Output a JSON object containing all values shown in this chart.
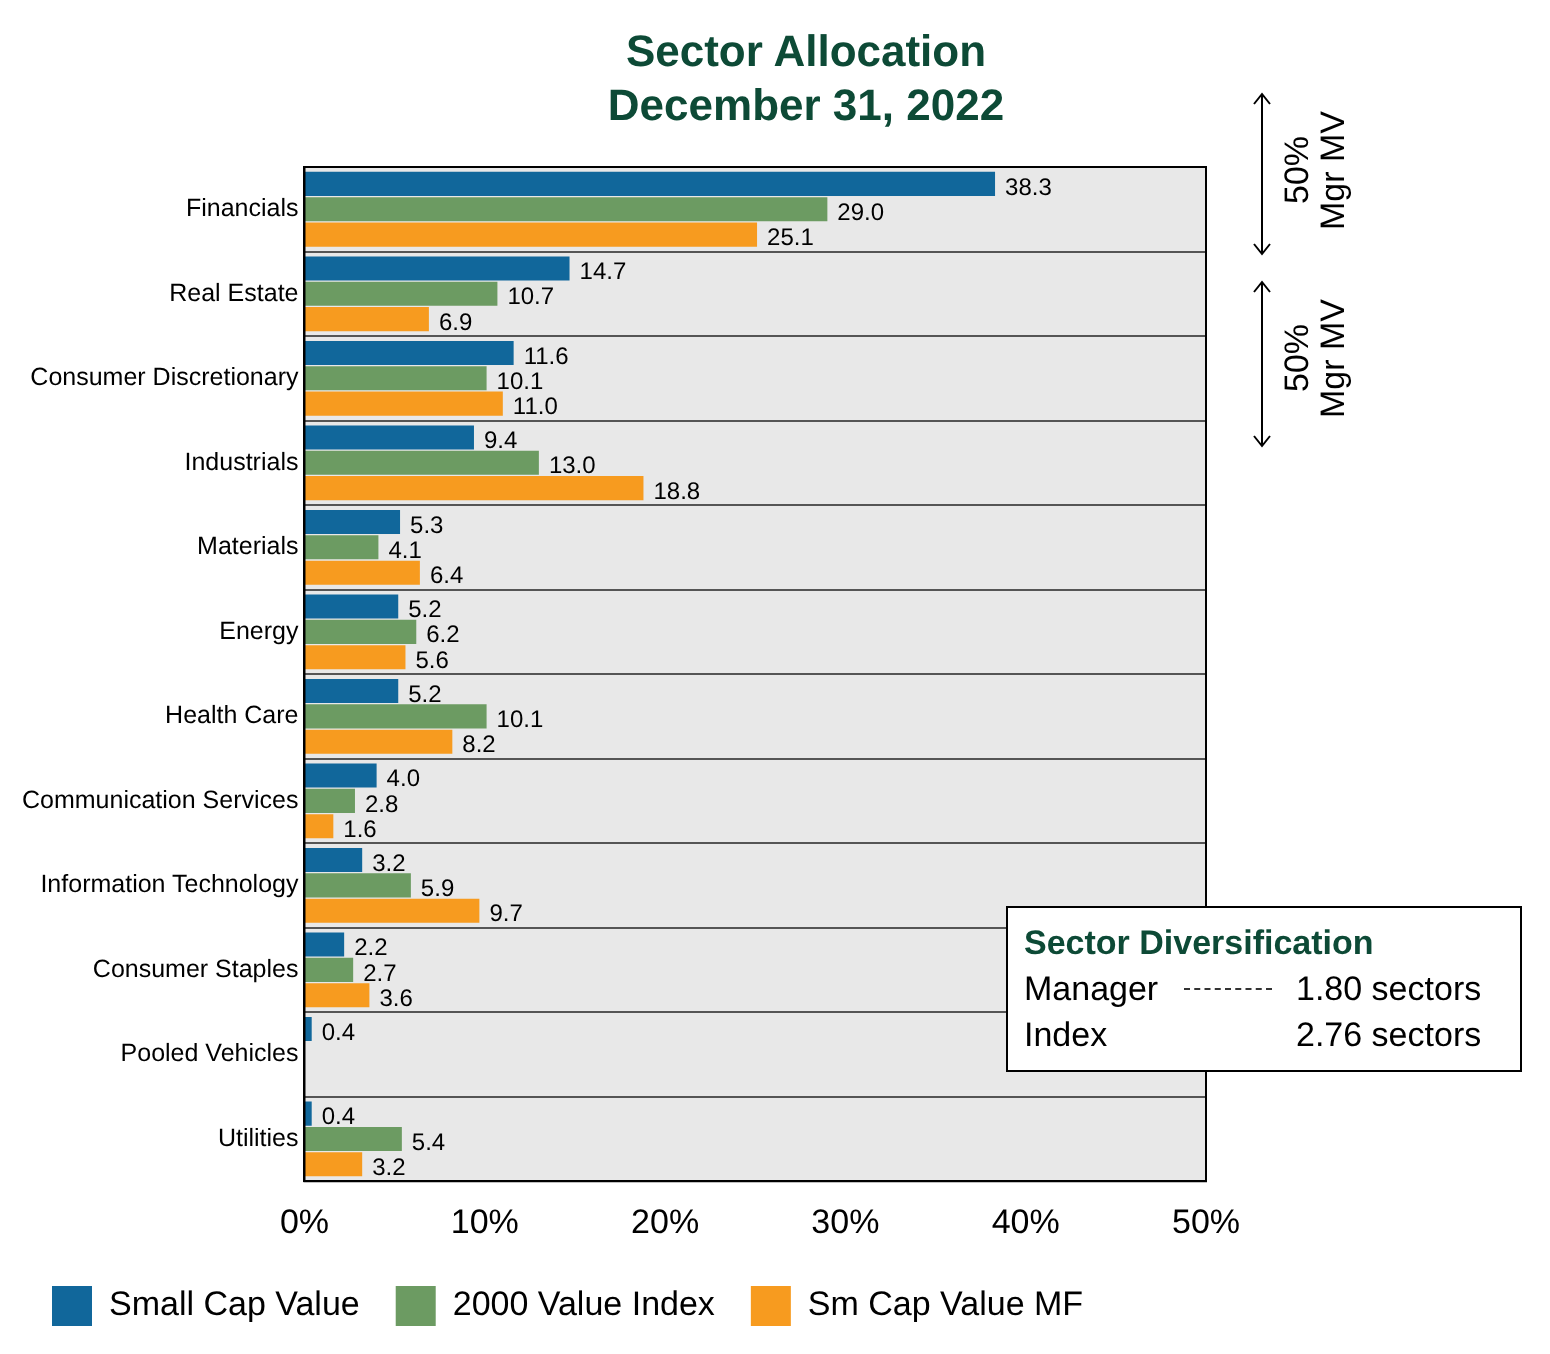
{
  "chart_data": {
    "type": "bar",
    "orientation": "horizontal",
    "title": "Sector Allocation",
    "subtitle": "December 31, 2022",
    "categories": [
      "Financials",
      "Real Estate",
      "Consumer Discretionary",
      "Industrials",
      "Materials",
      "Energy",
      "Health Care",
      "Communication Services",
      "Information Technology",
      "Consumer Staples",
      "Pooled Vehicles",
      "Utilities"
    ],
    "series": [
      {
        "name": "Small Cap Value",
        "color": "#11679b",
        "values": [
          38.3,
          14.7,
          11.6,
          9.4,
          5.3,
          5.2,
          5.2,
          4.0,
          3.2,
          2.2,
          0.4,
          0.4
        ],
        "value_labels": [
          "38.3",
          "14.7",
          "11.6",
          "9.4",
          "5.3",
          "5.2",
          "5.2",
          "4.0",
          "3.2",
          "2.2",
          "0.4",
          "0.4"
        ]
      },
      {
        "name": "2000 Value Index",
        "color": "#6c9b62",
        "values": [
          29.0,
          10.7,
          10.1,
          13.0,
          4.1,
          6.2,
          10.1,
          2.8,
          5.9,
          2.7,
          null,
          5.4
        ],
        "value_labels": [
          "29.0",
          "10.7",
          "10.1",
          "13.0",
          "4.1",
          "6.2",
          "10.1",
          "2.8",
          "5.9",
          "2.7",
          null,
          "5.4"
        ]
      },
      {
        "name": "Sm Cap Value MF",
        "color": "#f79b1f",
        "values": [
          25.1,
          6.9,
          11.0,
          18.8,
          6.4,
          5.6,
          8.2,
          1.6,
          9.7,
          3.6,
          null,
          3.2
        ],
        "value_labels": [
          "25.1",
          "6.9",
          "11.0",
          "18.8",
          "6.4",
          "5.6",
          "8.2",
          "1.6",
          "9.7",
          "3.6",
          null,
          "3.2"
        ]
      }
    ],
    "xlim": [
      0,
      50
    ],
    "xticks": [
      {
        "value": 0,
        "label": "0%"
      },
      {
        "value": 10,
        "label": "10%"
      },
      {
        "value": 20,
        "label": "20%"
      },
      {
        "value": 30,
        "label": "30%"
      },
      {
        "value": 40,
        "label": "40%"
      },
      {
        "value": 50,
        "label": "50%"
      }
    ],
    "grid": "y",
    "legend": "bottom",
    "annotations": [
      "50% Mgr MV",
      "50% Mgr MV",
      "Sector Diversification",
      "Manager",
      "1.80 sectors",
      "Index",
      "2.76 sectors"
    ]
  }
}
